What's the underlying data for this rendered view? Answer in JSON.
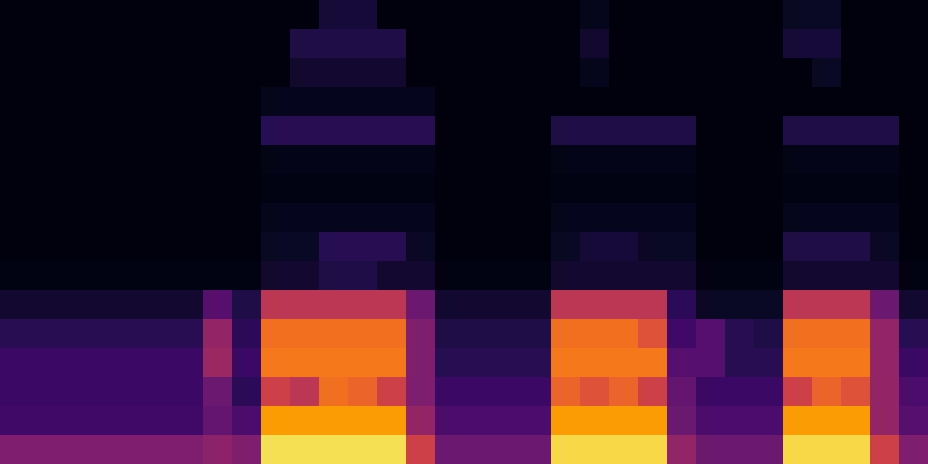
{
  "chart_data": {
    "type": "heatmap",
    "color": "inferno",
    "tick_labels": false,
    "color_range": [
      0,
      100
    ],
    "cells": [
      [
        2,
        2,
        2,
        2,
        2,
        2,
        2,
        2,
        2,
        2,
        2,
        10,
        10,
        2,
        2,
        2,
        2,
        2,
        2,
        2,
        5,
        2,
        2,
        2,
        2,
        2,
        2,
        6,
        6,
        2,
        2,
        2
      ],
      [
        2,
        2,
        2,
        2,
        2,
        2,
        2,
        2,
        2,
        2,
        12,
        12,
        12,
        12,
        2,
        2,
        2,
        2,
        2,
        2,
        8,
        2,
        2,
        2,
        2,
        2,
        2,
        10,
        10,
        2,
        2,
        2
      ],
      [
        2,
        2,
        2,
        2,
        2,
        2,
        2,
        2,
        2,
        2,
        8,
        8,
        8,
        8,
        2,
        2,
        2,
        2,
        2,
        2,
        5,
        2,
        2,
        2,
        2,
        2,
        2,
        2,
        6,
        2,
        2,
        2
      ],
      [
        2,
        2,
        2,
        2,
        2,
        2,
        2,
        2,
        2,
        5,
        5,
        5,
        5,
        5,
        5,
        2,
        2,
        2,
        2,
        2,
        2,
        2,
        2,
        2,
        2,
        2,
        2,
        2,
        2,
        2,
        2,
        2
      ],
      [
        2,
        2,
        2,
        2,
        2,
        2,
        2,
        2,
        2,
        14,
        14,
        14,
        14,
        14,
        14,
        2,
        2,
        2,
        2,
        12,
        12,
        12,
        12,
        12,
        2,
        2,
        2,
        12,
        12,
        12,
        12,
        2
      ],
      [
        2,
        2,
        2,
        2,
        2,
        2,
        2,
        2,
        2,
        4,
        4,
        4,
        4,
        4,
        4,
        2,
        2,
        2,
        2,
        4,
        4,
        4,
        4,
        4,
        2,
        2,
        2,
        4,
        4,
        4,
        4,
        2
      ],
      [
        2,
        2,
        2,
        2,
        2,
        2,
        2,
        2,
        2,
        3,
        3,
        3,
        3,
        3,
        3,
        2,
        2,
        2,
        2,
        3,
        3,
        3,
        3,
        3,
        2,
        2,
        2,
        3,
        3,
        3,
        3,
        2
      ],
      [
        2,
        2,
        2,
        2,
        2,
        2,
        2,
        2,
        2,
        5,
        5,
        5,
        5,
        5,
        5,
        2,
        2,
        2,
        2,
        5,
        5,
        5,
        5,
        5,
        2,
        2,
        2,
        5,
        5,
        5,
        5,
        2
      ],
      [
        2,
        2,
        2,
        2,
        2,
        2,
        2,
        2,
        2,
        6,
        6,
        14,
        14,
        14,
        6,
        2,
        2,
        2,
        2,
        6,
        10,
        10,
        6,
        6,
        2,
        2,
        2,
        12,
        12,
        12,
        6,
        2
      ],
      [
        3,
        3,
        3,
        3,
        3,
        3,
        3,
        3,
        3,
        8,
        8,
        12,
        12,
        8,
        8,
        3,
        3,
        3,
        3,
        8,
        8,
        8,
        8,
        8,
        3,
        3,
        3,
        8,
        8,
        8,
        8,
        3
      ],
      [
        8,
        8,
        8,
        8,
        8,
        8,
        8,
        25,
        12,
        50,
        50,
        50,
        50,
        50,
        30,
        8,
        8,
        8,
        8,
        50,
        50,
        50,
        50,
        15,
        6,
        6,
        6,
        50,
        50,
        50,
        30,
        8
      ],
      [
        14,
        14,
        14,
        14,
        14,
        14,
        14,
        40,
        15,
        68,
        68,
        68,
        68,
        68,
        35,
        12,
        12,
        12,
        12,
        68,
        68,
        68,
        60,
        20,
        25,
        14,
        12,
        68,
        68,
        68,
        40,
        14
      ],
      [
        18,
        18,
        18,
        18,
        18,
        18,
        18,
        42,
        18,
        70,
        70,
        70,
        70,
        70,
        35,
        14,
        14,
        14,
        14,
        70,
        70,
        70,
        70,
        25,
        25,
        14,
        14,
        70,
        70,
        70,
        40,
        18
      ],
      [
        18,
        18,
        18,
        18,
        18,
        18,
        18,
        30,
        15,
        55,
        50,
        68,
        65,
        55,
        35,
        18,
        18,
        18,
        18,
        65,
        60,
        65,
        55,
        28,
        18,
        18,
        18,
        55,
        65,
        60,
        40,
        22
      ],
      [
        20,
        20,
        20,
        20,
        20,
        20,
        20,
        28,
        22,
        78,
        78,
        78,
        78,
        78,
        40,
        22,
        22,
        22,
        22,
        78,
        78,
        78,
        78,
        30,
        22,
        22,
        22,
        78,
        78,
        78,
        40,
        25
      ],
      [
        35,
        35,
        35,
        35,
        35,
        35,
        35,
        38,
        35,
        92,
        92,
        92,
        92,
        92,
        55,
        30,
        30,
        30,
        30,
        90,
        90,
        90,
        90,
        40,
        30,
        30,
        30,
        90,
        90,
        90,
        55,
        35
      ]
    ]
  }
}
